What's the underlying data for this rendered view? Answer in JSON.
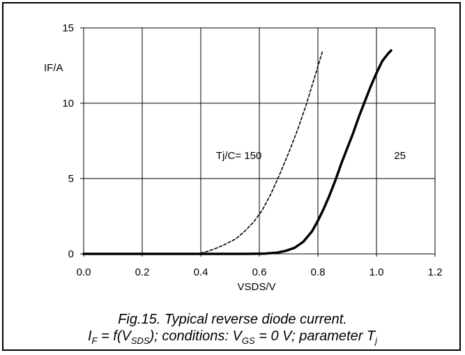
{
  "chart_data": {
    "type": "line",
    "title": "",
    "xlabel": "VSDS/V",
    "ylabel": "IF/A",
    "xlim": [
      0.0,
      1.2
    ],
    "ylim": [
      0,
      15
    ],
    "x_ticks": [
      "0.0",
      "0.2",
      "0.4",
      "0.6",
      "0.8",
      "1.0",
      "1.2"
    ],
    "y_ticks": [
      "0",
      "5",
      "10",
      "15"
    ],
    "grid": true,
    "legend": "none",
    "annotations": [
      {
        "text": "Tj/C= 150",
        "x": 0.53,
        "y": 6.3
      },
      {
        "text": "25",
        "x": 1.08,
        "y": 6.3
      }
    ],
    "series": [
      {
        "name": "150",
        "style": "dashed",
        "x": [
          0.0,
          0.3,
          0.38,
          0.4,
          0.42,
          0.45,
          0.48,
          0.52,
          0.55,
          0.58,
          0.61,
          0.64,
          0.67,
          0.7,
          0.73,
          0.76,
          0.79,
          0.815
        ],
        "y": [
          0.0,
          0.0,
          0.0,
          0.05,
          0.15,
          0.35,
          0.6,
          1.0,
          1.5,
          2.1,
          2.9,
          4.0,
          5.3,
          6.7,
          8.2,
          9.9,
          11.8,
          13.4
        ]
      },
      {
        "name": "25",
        "style": "solid",
        "x": [
          0.0,
          0.55,
          0.62,
          0.66,
          0.69,
          0.72,
          0.75,
          0.78,
          0.8,
          0.82,
          0.84,
          0.86,
          0.88,
          0.9,
          0.92,
          0.94,
          0.96,
          0.98,
          1.0,
          1.02,
          1.04,
          1.05
        ],
        "y": [
          0.0,
          0.0,
          0.02,
          0.08,
          0.2,
          0.4,
          0.8,
          1.5,
          2.2,
          3.0,
          3.9,
          4.9,
          6.0,
          7.0,
          8.0,
          9.1,
          10.1,
          11.1,
          12.0,
          12.8,
          13.3,
          13.5
        ]
      }
    ]
  },
  "caption": {
    "line1": "Fig.15.   Typical reverse diode current.",
    "line2_prefix": "I",
    "line2_sub1": "F",
    "line2_mid": " = f(V",
    "line2_sub2": "SDS",
    "line2_mid2": "); conditions: V",
    "line2_sub3": "GS",
    "line2_mid3": " = 0 V; parameter T",
    "line2_sub4": "j"
  }
}
